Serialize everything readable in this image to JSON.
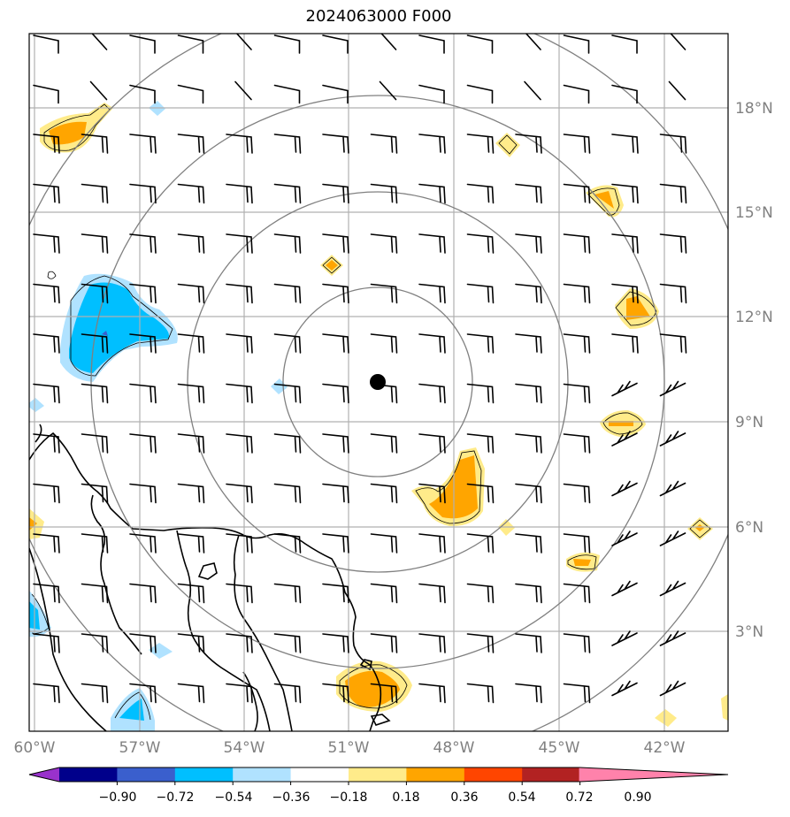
{
  "title": "2024063000 F000",
  "map": {
    "lon_ticks": [
      "60°W",
      "57°W",
      "54°W",
      "51°W",
      "48°W",
      "45°W",
      "42°W"
    ],
    "lat_ticks": [
      "18°N",
      "15°N",
      "12°N",
      "9°N",
      "6°N",
      "3°N"
    ],
    "center_marker": {
      "lon": -50.1,
      "lat": 10.0
    }
  },
  "colorbar": {
    "labels": [
      "−0.90",
      "−0.72",
      "−0.54",
      "−0.36",
      "−0.18",
      "0.18",
      "0.36",
      "0.54",
      "0.72",
      "0.90"
    ],
    "colors": [
      "#9932CC",
      "#00008B",
      "#3A5FCD",
      "#00BFFF",
      "#B0E2FF",
      "#FFFFFF",
      "#FFEB8A",
      "#FFA500",
      "#FF4500",
      "#B22222",
      "#FF82AB"
    ]
  },
  "colors": {
    "land": "#000000",
    "grid": "#b0b0b0",
    "range_rings": "#808080",
    "barbs": "#000000"
  }
}
